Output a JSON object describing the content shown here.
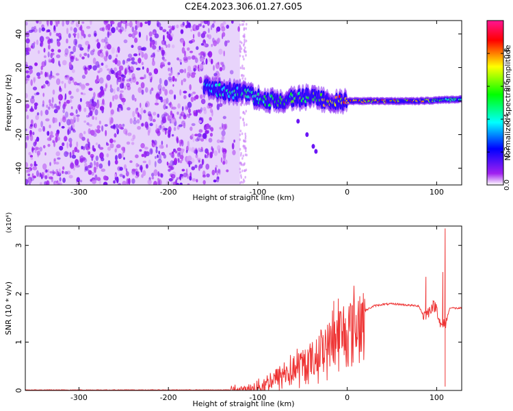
{
  "chart_data": [
    {
      "type": "heatmap",
      "title": "C2E4.2023.306.01.27.G05",
      "xlabel": "Height of straight line (km)",
      "ylabel": "Frequency (Hz)",
      "xlim": [
        -360,
        128
      ],
      "ylim": [
        -50,
        48
      ],
      "xticks": [
        "-300",
        "-200",
        "-100",
        "0",
        "100"
      ],
      "yticks": [
        "-40",
        "-20",
        "0",
        "20",
        "40"
      ],
      "colorbar": {
        "label": "Normalized spectral amplitude",
        "range": [
          0,
          1
        ],
        "ticks": [
          "0.0",
          "0.2",
          "0.4",
          "0.6",
          "0.8"
        ],
        "colors": [
          "#ffffff",
          "#a020f0",
          "#0000ff",
          "#00ffff",
          "#00ff00",
          "#ffff00",
          "#ff0000",
          "#ff1493"
        ]
      },
      "noise_region_x": [
        -360,
        -120
      ],
      "signal_trace": [
        {
          "x": -160,
          "freq": 8,
          "amp": 0.4
        },
        {
          "x": -140,
          "freq": 6,
          "amp": 0.45
        },
        {
          "x": -120,
          "freq": 5,
          "amp": 0.5
        },
        {
          "x": -100,
          "freq": 2,
          "amp": 0.5
        },
        {
          "x": -80,
          "freq": 0,
          "amp": 0.55
        },
        {
          "x": -60,
          "freq": 1,
          "amp": 0.6
        },
        {
          "x": -40,
          "freq": 3,
          "amp": 0.6
        },
        {
          "x": -20,
          "freq": 0,
          "amp": 0.75
        },
        {
          "x": 0,
          "freq": 0,
          "amp": 0.85
        },
        {
          "x": 40,
          "freq": 0,
          "amp": 0.85
        },
        {
          "x": 80,
          "freq": 0,
          "amp": 0.85
        },
        {
          "x": 100,
          "freq": 0.5,
          "amp": 0.55
        },
        {
          "x": 125,
          "freq": 1,
          "amp": 0.5
        }
      ],
      "branch": [
        {
          "x": -55,
          "freq": -12
        },
        {
          "x": -45,
          "freq": -20
        },
        {
          "x": -38,
          "freq": -27
        },
        {
          "x": -35,
          "freq": -30
        }
      ]
    },
    {
      "type": "line",
      "xlabel": "Height of straight line (km)",
      "ylabel": "SNR (10 * v/v)",
      "y_multiplier": "(x10⁴)",
      "xlim": [
        -360,
        128
      ],
      "ylim": [
        0,
        3.4
      ],
      "xticks": [
        "-300",
        "-200",
        "-100",
        "0",
        "100"
      ],
      "yticks": [
        "0",
        "1",
        "2",
        "3"
      ],
      "color": "#ee3333",
      "series": [
        {
          "x": [
            -360,
            -300,
            -200,
            -130,
            -110,
            -100,
            -90,
            -80,
            -70,
            -60,
            -50,
            -40,
            -30,
            -20,
            -10,
            0,
            10,
            20,
            30,
            40,
            50,
            60,
            70,
            80,
            85,
            90,
            95,
            100,
            105,
            110,
            115,
            120,
            128
          ],
          "y": [
            0.01,
            0.01,
            0.01,
            0.01,
            0.03,
            0.1,
            0.2,
            0.3,
            0.4,
            0.5,
            0.6,
            0.7,
            0.9,
            1.1,
            1.3,
            1.4,
            1.55,
            1.65,
            1.75,
            1.78,
            1.79,
            1.78,
            1.76,
            1.75,
            1.55,
            1.6,
            1.75,
            1.72,
            1.3,
            1.4,
            1.72,
            1.7,
            1.7
          ]
        }
      ],
      "spikes": [
        {
          "x": 88,
          "y": 2.35
        },
        {
          "x": 107,
          "y": 2.45
        },
        {
          "x": 109.5,
          "y": 3.35
        },
        {
          "x": 109.5,
          "y": 0.08
        },
        {
          "x": -15,
          "y": 1.85
        },
        {
          "x": -10,
          "y": 1.9
        }
      ]
    }
  ]
}
